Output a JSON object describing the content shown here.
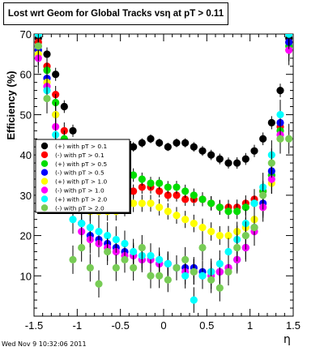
{
  "title": "Lost wrt Geom for Global Tracks vsη at pT > 0.11",
  "timestamp": "Wed Nov  9 10:32:06 2011",
  "chart_data": {
    "type": "scatter",
    "xlabel": "η",
    "ylabel": "Efficiency (%)",
    "xlim": [
      -1.5,
      1.5
    ],
    "ylim": [
      0,
      70
    ],
    "xticks": [
      "-1.5",
      "-1",
      "-0.5",
      "0",
      "0.5",
      "1",
      "1.5"
    ],
    "yticks": [
      "10",
      "20",
      "30",
      "40",
      "50",
      "60",
      "70"
    ],
    "legend_position": "middle-left",
    "series": [
      {
        "name": "(+) with pT > 0.1",
        "color": "#000000",
        "err": 1,
        "x": [
          -1.45,
          -1.35,
          -1.25,
          -1.15,
          -1.05,
          -0.95,
          -0.85,
          -0.75,
          -0.65,
          -0.55,
          -0.45,
          -0.35,
          -0.25,
          -0.15,
          -0.05,
          0.05,
          0.15,
          0.25,
          0.35,
          0.45,
          0.55,
          0.65,
          0.75,
          0.85,
          0.95,
          1.05,
          1.15,
          1.25,
          1.35,
          1.45
        ],
        "y": [
          69,
          65,
          60,
          52,
          46,
          42,
          40,
          40,
          41,
          41,
          42,
          42,
          43,
          44,
          43,
          42,
          43,
          43,
          42,
          41,
          40,
          39,
          38,
          38,
          39,
          41,
          44,
          48,
          56,
          69
        ]
      },
      {
        "name": "(-) with pT > 0.1",
        "color": "#ff0000",
        "err": 1.5,
        "x": [
          -1.45,
          -1.35,
          -1.25,
          -1.15,
          -1.05,
          -0.95,
          -0.85,
          -0.75,
          -0.65,
          -0.55,
          -0.45,
          -0.35,
          -0.25,
          -0.15,
          -0.05,
          0.05,
          0.15,
          0.25,
          0.35,
          0.45,
          0.55,
          0.65,
          0.75,
          0.85,
          0.95,
          1.05,
          1.15,
          1.25,
          1.35,
          1.45
        ],
        "y": [
          68,
          62,
          55,
          46,
          38,
          33,
          30,
          30,
          30,
          30,
          31,
          31,
          32,
          32,
          31,
          30,
          30,
          29,
          29,
          29,
          28,
          27,
          27,
          27,
          28,
          29,
          31,
          35,
          47,
          68
        ]
      },
      {
        "name": "(+) with pT > 0.5",
        "color": "#00dd00",
        "err": 1.5,
        "x": [
          -1.45,
          -1.35,
          -1.25,
          -1.15,
          -1.05,
          -0.95,
          -0.85,
          -0.75,
          -0.65,
          -0.55,
          -0.45,
          -0.35,
          -0.25,
          -0.15,
          -0.05,
          0.05,
          0.15,
          0.25,
          0.35,
          0.45,
          0.55,
          0.65,
          0.75,
          0.85,
          0.95,
          1.05,
          1.15,
          1.25,
          1.35,
          1.45
        ],
        "y": [
          67,
          61,
          53,
          44,
          36,
          32,
          31,
          31,
          32,
          33,
          34,
          35,
          34,
          33,
          33,
          32,
          32,
          31,
          30,
          29,
          28,
          27,
          26,
          26,
          27,
          28,
          31,
          35,
          46,
          67
        ]
      },
      {
        "name": "(-) with pT > 0.5",
        "color": "#0000ff",
        "err": 2.5,
        "x": [
          -1.45,
          -1.35,
          -1.25,
          -1.15,
          -1.05,
          -0.95,
          -0.85,
          -0.75,
          -0.65,
          -0.55,
          -0.45,
          -0.35,
          -0.25,
          -0.15,
          -0.05,
          0.05,
          0.15,
          0.25,
          0.35,
          0.45,
          0.55,
          0.65,
          0.75,
          0.85,
          0.95,
          1.05,
          1.15,
          1.25,
          1.35,
          1.45
        ],
        "y": [
          66,
          59,
          50,
          40,
          30,
          23,
          20,
          19,
          18,
          17,
          16,
          15,
          14,
          14,
          13,
          13,
          12,
          12,
          12,
          11,
          11,
          11,
          12,
          14,
          17,
          22,
          28,
          36,
          48,
          68
        ]
      },
      {
        "name": "(+) with pT > 1.0",
        "color": "#ffff00",
        "err": 2,
        "x": [
          -1.45,
          -1.35,
          -1.25,
          -1.15,
          -1.05,
          -0.95,
          -0.85,
          -0.75,
          -0.65,
          -0.55,
          -0.45,
          -0.35,
          -0.25,
          -0.15,
          -0.05,
          0.05,
          0.15,
          0.25,
          0.35,
          0.45,
          0.55,
          0.65,
          0.75,
          0.85,
          0.95,
          1.05,
          1.15,
          1.25,
          1.35,
          1.45
        ],
        "y": [
          65,
          58,
          50,
          40,
          33,
          28,
          26,
          26,
          26,
          26,
          27,
          28,
          28,
          28,
          27,
          26,
          25,
          24,
          23,
          22,
          21,
          20,
          20,
          21,
          22,
          24,
          27,
          33,
          44,
          66
        ]
      },
      {
        "name": "(-) with pT > 1.0",
        "color": "#ff00ff",
        "err": 3,
        "x": [
          -1.45,
          -1.35,
          -1.25,
          -1.15,
          -1.05,
          -0.95,
          -0.85,
          -0.75,
          -0.65,
          -0.55,
          -0.45,
          -0.35,
          -0.25,
          -0.15,
          -0.05,
          0.05,
          0.15,
          0.25,
          0.35,
          0.45,
          0.55,
          0.65,
          0.75,
          0.85,
          0.95,
          1.05,
          1.15,
          1.25,
          1.35,
          1.45
        ],
        "y": [
          64,
          57,
          47,
          36,
          27,
          21,
          19,
          18,
          17,
          16,
          15,
          15,
          14,
          14,
          13,
          13,
          12,
          11,
          11,
          10,
          10,
          11,
          12,
          14,
          17,
          21,
          27,
          34,
          45,
          66
        ]
      },
      {
        "name": "(+) with pT > 2.0",
        "color": "#00ffff",
        "err": 3,
        "x": [
          -1.45,
          -1.35,
          -1.25,
          -1.15,
          -1.05,
          -0.95,
          -0.85,
          -0.75,
          -0.65,
          -0.55,
          -0.45,
          -0.35,
          -0.25,
          -0.15,
          -0.05,
          0.05,
          0.15,
          0.25,
          0.35,
          0.45,
          0.55,
          0.65,
          0.75,
          0.85,
          0.95,
          1.05,
          1.15,
          1.25,
          1.35,
          1.45
        ],
        "y": [
          70,
          56,
          45,
          32,
          24,
          23,
          22,
          21,
          20,
          19,
          18,
          16,
          15,
          15,
          14,
          13,
          12,
          10,
          4,
          10,
          11,
          13,
          16,
          19,
          23,
          28,
          32,
          40,
          50,
          70
        ]
      },
      {
        "name": "(-) with pT > 2.0",
        "color": "#77cc55",
        "err": 3,
        "x": [
          -1.45,
          -1.35,
          -1.25,
          -1.15,
          -1.05,
          -0.95,
          -0.85,
          -0.75,
          -0.65,
          -0.55,
          -0.45,
          -0.35,
          -0.25,
          -0.15,
          -0.05,
          0.05,
          0.15,
          0.25,
          0.35,
          0.45,
          0.55,
          0.65,
          0.75,
          0.85,
          0.95,
          1.05,
          1.15,
          1.25,
          1.35,
          1.45
        ],
        "y": [
          67,
          54,
          42,
          30,
          14,
          17,
          12,
          8,
          16,
          12,
          14,
          12,
          17,
          10,
          10,
          9,
          12,
          14,
          11,
          17,
          9,
          7,
          11,
          17,
          20,
          22,
          30,
          38,
          44,
          44
        ]
      }
    ]
  }
}
